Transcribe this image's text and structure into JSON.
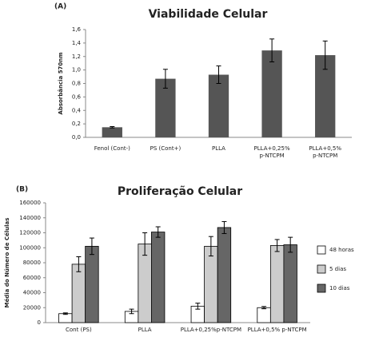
{
  "chart_data": [
    {
      "type": "bar",
      "panel": "(A)",
      "title": "Viabilidade Celular",
      "y_label": "Absorbância 570nm",
      "categories": [
        "Fenol (Cont-)",
        "PS (Cont+)",
        "PLLA",
        "PLLA+0,25% p-NTCPM",
        "PLLA+0,5% p-NTCPM"
      ],
      "values": [
        0.15,
        0.87,
        0.93,
        1.29,
        1.22
      ],
      "errors": [
        0.01,
        0.14,
        0.13,
        0.17,
        0.21
      ],
      "color": "#555555",
      "ylim": [
        0,
        1.6
      ],
      "yticks": [
        {
          "value": 0,
          "label": "0,0"
        },
        {
          "value": 0.2,
          "label": "0,2"
        },
        {
          "value": 0.4,
          "label": "0,4"
        },
        {
          "value": 0.6,
          "label": "0,6"
        },
        {
          "value": 0.8,
          "label": "0,8"
        },
        {
          "value": 1.0,
          "label": "1,0"
        },
        {
          "value": 1.2,
          "label": "1,2"
        },
        {
          "value": 1.4,
          "label": "1,4"
        },
        {
          "value": 1.6,
          "label": "1,6"
        }
      ],
      "grid": false
    },
    {
      "type": "bar",
      "panel": "(B)",
      "title": "Proliferação Celular",
      "y_label": "Média do Número de Células",
      "categories": [
        "Cont (PS)",
        "PLLA",
        "PLLA+0,25%p-NTCPM",
        "PLLA+0,5% p-NTCPM"
      ],
      "series": [
        {
          "name": "48 horas",
          "color": "#ffffff",
          "values": [
            12000,
            15000,
            22000,
            20000
          ],
          "errors": [
            1000,
            3000,
            4000,
            1500
          ]
        },
        {
          "name": "5 dias",
          "color": "#cccccc",
          "values": [
            78000,
            105000,
            102000,
            103000
          ],
          "errors": [
            10000,
            15000,
            13000,
            8000
          ]
        },
        {
          "name": "10 dias",
          "color": "#666666",
          "values": [
            102000,
            121000,
            127000,
            104000
          ],
          "errors": [
            11000,
            7000,
            8000,
            10000
          ]
        }
      ],
      "ylim": [
        0,
        160000
      ],
      "yticks": [
        0,
        20000,
        40000,
        60000,
        80000,
        100000,
        120000,
        140000,
        160000
      ],
      "grid": false,
      "legend": "right"
    }
  ]
}
